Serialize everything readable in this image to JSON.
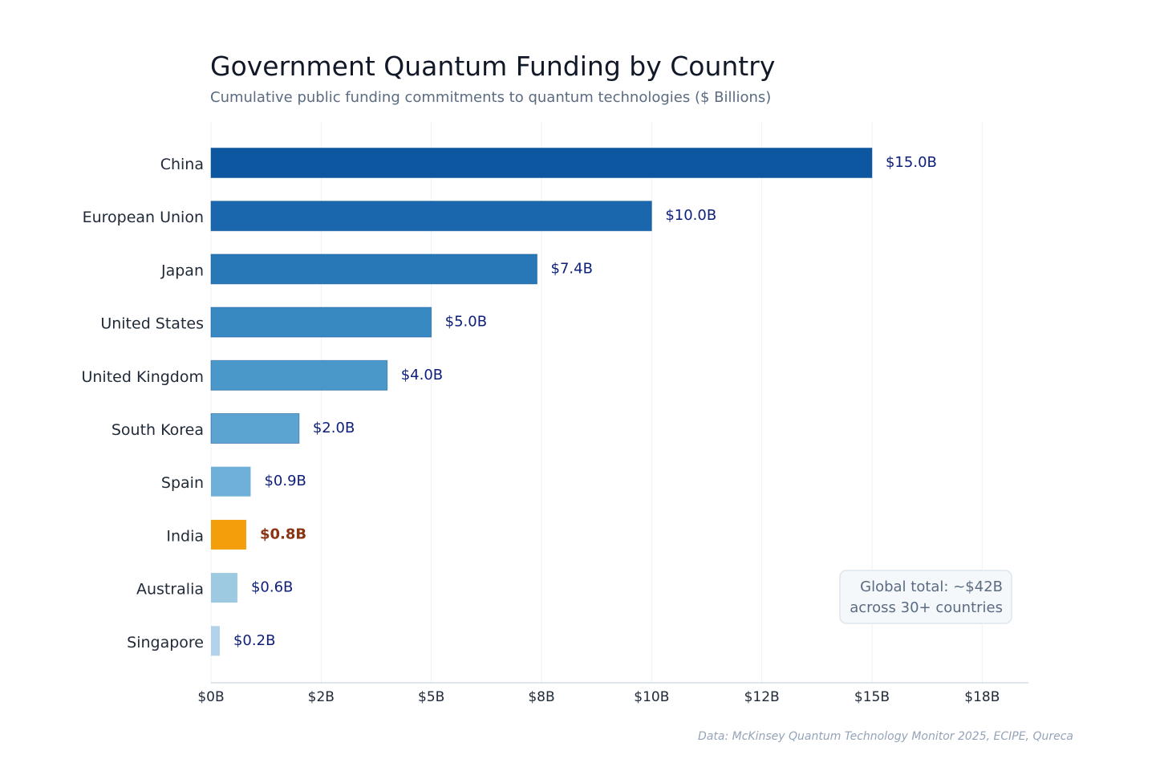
{
  "chart_data": {
    "type": "bar",
    "orientation": "horizontal",
    "title": "Government Quantum Funding by Country",
    "subtitle": "Cumulative public funding commitments to quantum technologies ($ Billions)",
    "categories": [
      "China",
      "European Union",
      "Japan",
      "United States",
      "United Kingdom",
      "South Korea",
      "Spain",
      "India",
      "Australia",
      "Singapore"
    ],
    "values": [
      15.0,
      10.0,
      7.4,
      5.0,
      4.0,
      2.0,
      0.9,
      0.8,
      0.6,
      0.2
    ],
    "value_labels": [
      "$15.0B",
      "$10.0B",
      "$7.4B",
      "$5.0B",
      "$4.0B",
      "$2.0B",
      "$0.9B",
      "$0.8B",
      "$0.6B",
      "$0.2B"
    ],
    "colors": [
      "#0d57a1",
      "#1a67ad",
      "#2878b8",
      "#3888c1",
      "#4a98c9",
      "#5ba3d0",
      "#6fb0d8",
      "#f59e0b",
      "#9ecae1",
      "#b3d3ea"
    ],
    "highlight": {
      "category": "India",
      "label_color": "#8a3412"
    },
    "xlabel": "",
    "ylabel": "",
    "xlim": [
      0,
      18.55
    ],
    "x_ticks": [
      0,
      2.5,
      5,
      7.5,
      10,
      12.5,
      15,
      17.5
    ],
    "x_tick_labels": [
      "$0B",
      "$2B",
      "$5B",
      "$8B",
      "$10B",
      "$12B",
      "$15B",
      "$18B"
    ],
    "grid": true,
    "annotation": {
      "line1": "Global total: ~$42B",
      "line2": "across 30+ countries"
    },
    "source": "Data: McKinsey Quantum Technology Monitor 2025, ECIPE, Qureca"
  }
}
